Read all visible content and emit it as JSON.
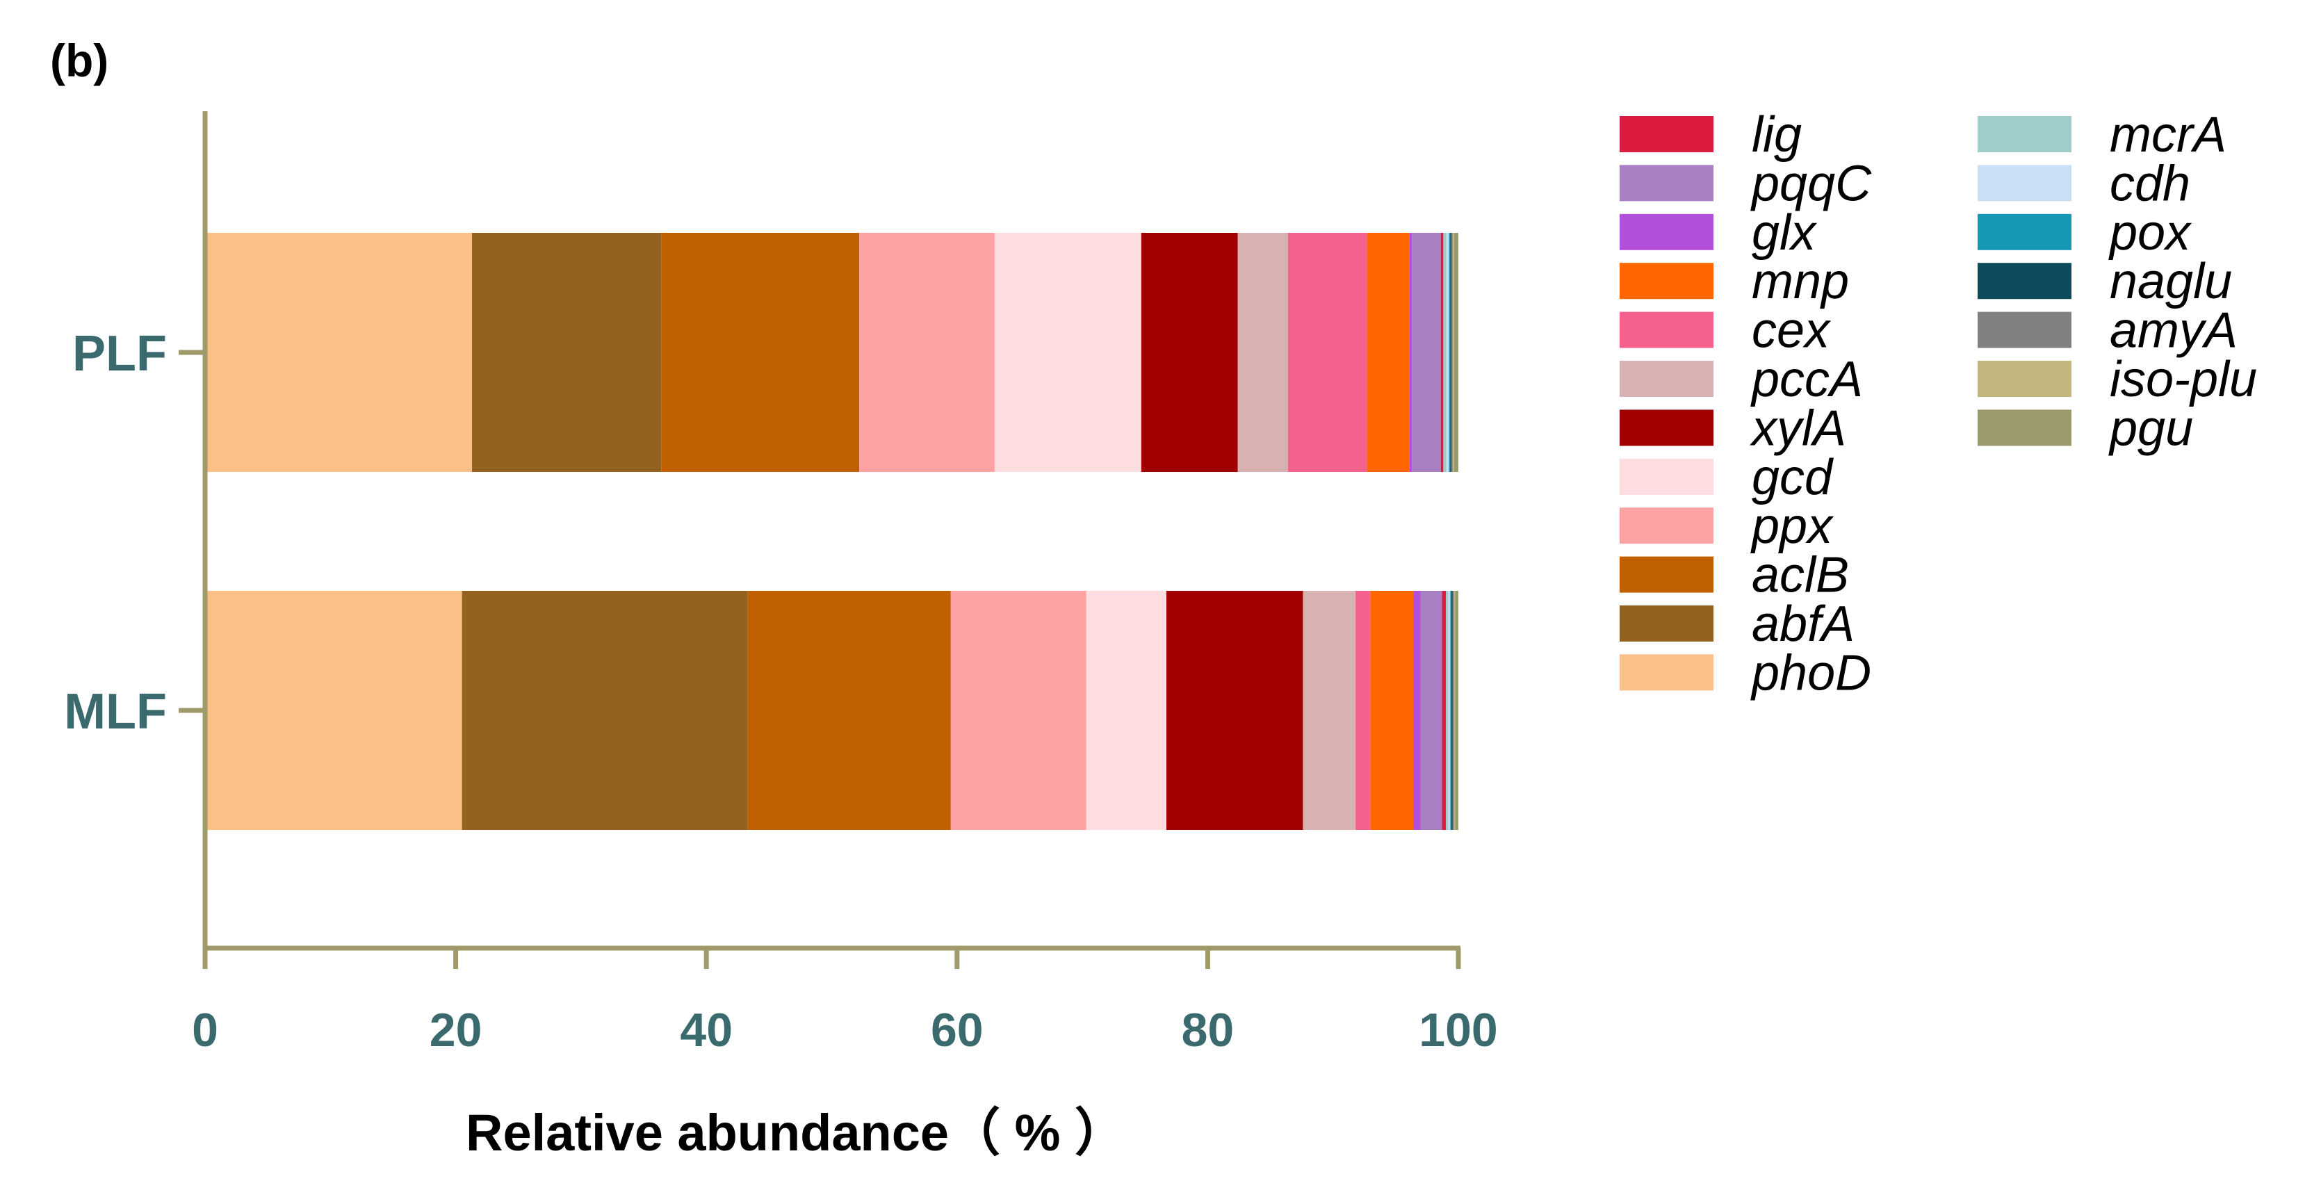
{
  "chart_data": {
    "panel_label": "(b)",
    "type": "stacked-bar-horizontal",
    "categories": [
      "PLF",
      "MLF"
    ],
    "xlabel": "Relative abundance（ % ）",
    "xlim": [
      0,
      100
    ],
    "xticks": [
      "0",
      "20",
      "40",
      "60",
      "80",
      "100"
    ],
    "xtick_values": [
      0,
      20,
      40,
      60,
      80,
      100
    ],
    "legend_position": "right",
    "series": [
      {
        "name": "phoD",
        "color": "#FBBF88",
        "values": [
          21.3,
          20.5
        ]
      },
      {
        "name": "abfA",
        "color": "#93621E",
        "values": [
          15.1,
          22.8
        ]
      },
      {
        "name": "aclB",
        "color": "#C06000",
        "values": [
          15.8,
          16.2
        ]
      },
      {
        "name": "ppx",
        "color": "#FDA2A2",
        "values": [
          10.8,
          10.8
        ]
      },
      {
        "name": "gcd",
        "color": "#FDDDE0",
        "values": [
          11.7,
          6.4
        ]
      },
      {
        "name": "xylA",
        "color": "#A00000",
        "values": [
          7.7,
          10.9
        ]
      },
      {
        "name": "pccA",
        "color": "#D9B1B1",
        "values": [
          4.0,
          4.2
        ]
      },
      {
        "name": "cex",
        "color": "#F5608C",
        "values": [
          6.3,
          1.2
        ]
      },
      {
        "name": "mnp",
        "color": "#FF6600",
        "values": [
          3.4,
          3.4
        ]
      },
      {
        "name": "glx",
        "color": "#B34FDB",
        "values": [
          0.2,
          0.6
        ]
      },
      {
        "name": "pqqC",
        "color": "#A87FC0",
        "values": [
          2.3,
          1.7
        ]
      },
      {
        "name": "lig",
        "color": "#DC1A40",
        "values": [
          0.2,
          0.3
        ]
      },
      {
        "name": "mcrA",
        "color": "#9FCDCB",
        "values": [
          0.25,
          0.2
        ]
      },
      {
        "name": "cdh",
        "color": "#C9DFF5",
        "values": [
          0.2,
          0.15
        ]
      },
      {
        "name": "pox",
        "color": "#1498B5",
        "values": [
          0.1,
          0.1
        ]
      },
      {
        "name": "naglu",
        "color": "#0D4A5C",
        "values": [
          0.1,
          0.1
        ]
      },
      {
        "name": "amyA",
        "color": "#808080",
        "values": [
          0.1,
          0.1
        ]
      },
      {
        "name": "iso-plu",
        "color": "#C2B67F",
        "values": [
          0.1,
          0.1
        ]
      },
      {
        "name": "pgu",
        "color": "#9B9A6B",
        "values": [
          0.35,
          0.25
        ]
      }
    ],
    "legend_columns": [
      [
        "lig",
        "pqqC",
        "glx",
        "mnp",
        "cex",
        "pccA",
        "xylA",
        "gcd",
        "ppx",
        "aclB",
        "abfA",
        "phoD"
      ],
      [
        "mcrA",
        "cdh",
        "pox",
        "naglu",
        "amyA",
        "iso-plu",
        "pgu"
      ]
    ],
    "axis_color": "#A09A6A"
  }
}
